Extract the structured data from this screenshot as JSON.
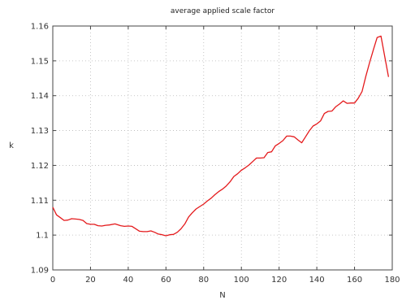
{
  "chart_data": {
    "type": "line",
    "title": "average applied scale factor",
    "xlabel": "N",
    "ylabel": "k",
    "xlim": [
      0,
      180
    ],
    "ylim": [
      1.09,
      1.16
    ],
    "xticks": [
      0,
      20,
      40,
      60,
      80,
      100,
      120,
      140,
      160,
      180
    ],
    "yticks": [
      1.09,
      1.1,
      1.11,
      1.12,
      1.13,
      1.14,
      1.15,
      1.16
    ],
    "ytick_labels": [
      "1.09",
      "1.1",
      "1.11",
      "1.12",
      "1.13",
      "1.14",
      "1.15",
      "1.16"
    ],
    "grid": true,
    "legend": "none",
    "series": [
      {
        "color": "#e41a1c",
        "x": [
          0,
          2,
          4,
          6,
          8,
          10,
          12,
          14,
          16,
          18,
          20,
          22,
          24,
          26,
          28,
          30,
          33,
          36,
          38,
          40,
          42,
          44,
          46,
          48,
          50,
          52,
          54,
          56,
          58,
          60,
          62,
          64,
          66,
          68,
          70,
          72,
          74,
          76,
          78,
          80,
          82,
          84,
          86,
          88,
          90,
          92,
          94,
          96,
          98,
          100,
          102,
          104,
          106,
          108,
          110,
          112,
          114,
          116,
          118,
          120,
          122,
          124,
          126,
          128,
          130,
          132,
          134,
          136,
          138,
          140,
          142,
          144,
          146,
          148,
          150,
          152,
          154,
          156,
          158,
          160,
          162,
          164,
          166,
          168,
          170,
          172,
          174,
          176,
          178
        ],
        "y": [
          1.108,
          1.1058,
          1.105,
          1.1042,
          1.1043,
          1.1047,
          1.1046,
          1.1045,
          1.1042,
          1.1033,
          1.1031,
          1.1031,
          1.1027,
          1.1026,
          1.1028,
          1.1029,
          1.1032,
          1.1027,
          1.1025,
          1.1026,
          1.1025,
          1.1018,
          1.1011,
          1.101,
          1.101,
          1.1012,
          1.1008,
          1.1003,
          1.1001,
          1.0998,
          1.1001,
          1.1002,
          1.1008,
          1.1018,
          1.1032,
          1.1052,
          1.1064,
          1.1075,
          1.1082,
          1.1089,
          1.1098,
          1.1106,
          1.1116,
          1.1125,
          1.1132,
          1.1141,
          1.1153,
          1.1168,
          1.1176,
          1.1186,
          1.1193,
          1.1201,
          1.1211,
          1.1221,
          1.1221,
          1.1222,
          1.1237,
          1.1239,
          1.1256,
          1.1263,
          1.1271,
          1.1284,
          1.1284,
          1.1282,
          1.1273,
          1.1265,
          1.1282,
          1.1299,
          1.1313,
          1.1319,
          1.1328,
          1.1349,
          1.1355,
          1.1356,
          1.1368,
          1.1376,
          1.1385,
          1.1378,
          1.1379,
          1.1379,
          1.1393,
          1.1412,
          1.1456,
          1.1495,
          1.1532,
          1.1567,
          1.1571,
          1.1513,
          1.1454
        ]
      }
    ]
  }
}
